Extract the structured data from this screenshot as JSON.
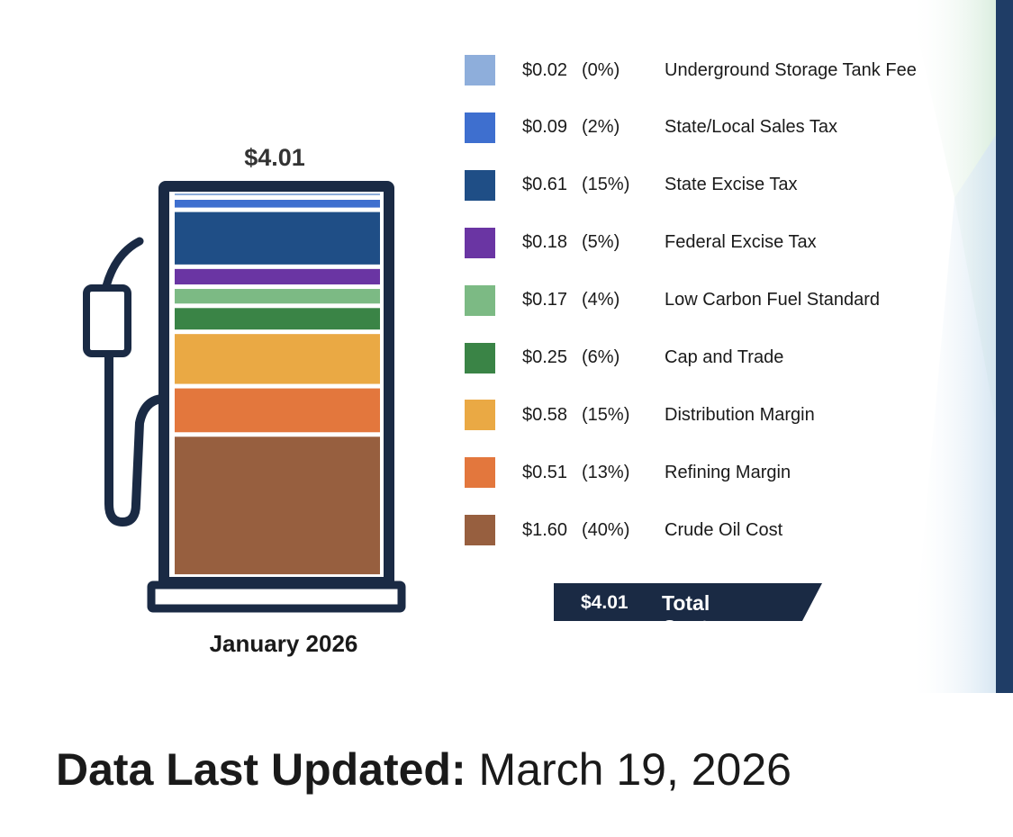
{
  "colors": {
    "outline": "#1a2a44",
    "total_bg": "#1a2a44",
    "right_bar": "#1f3d66"
  },
  "chart_data": {
    "type": "bar",
    "subtype": "stacked-pump",
    "title": "$4.01",
    "xlabel": "January 2026",
    "total": {
      "amount": "$4.01",
      "label": "Total Cost",
      "value": 4.01
    },
    "components": [
      {
        "label": "Underground Storage Tank Fee",
        "amount": "$0.02",
        "pct": "(0%)",
        "value": 0.02,
        "color": "#8eaedb"
      },
      {
        "label": "State/Local Sales Tax",
        "amount": "$0.09",
        "pct": "(2%)",
        "value": 0.09,
        "color": "#3e6fcf"
      },
      {
        "label": "State Excise Tax",
        "amount": "$0.61",
        "pct": "(15%)",
        "value": 0.61,
        "color": "#1f4e86"
      },
      {
        "label": "Federal Excise Tax",
        "amount": "$0.18",
        "pct": "(5%)",
        "value": 0.18,
        "color": "#6a35a3"
      },
      {
        "label": "Low Carbon Fuel Standard",
        "amount": "$0.17",
        "pct": "(4%)",
        "value": 0.17,
        "color": "#7cba84"
      },
      {
        "label": "Cap and Trade",
        "amount": "$0.25",
        "pct": "(6%)",
        "value": 0.25,
        "color": "#3a8446"
      },
      {
        "label": "Distribution Margin",
        "amount": "$0.58",
        "pct": "(15%)",
        "value": 0.58,
        "color": "#eaa944"
      },
      {
        "label": "Refining Margin",
        "amount": "$0.51",
        "pct": "(13%)",
        "value": 0.51,
        "color": "#e3773d"
      },
      {
        "label": "Crude Oil Cost",
        "amount": "$1.60",
        "pct": "(40%)",
        "value": 1.6,
        "color": "#975f3f"
      }
    ]
  },
  "footer": {
    "updated_label": "Data Last Updated:",
    "updated_date": "March 19, 2026"
  }
}
